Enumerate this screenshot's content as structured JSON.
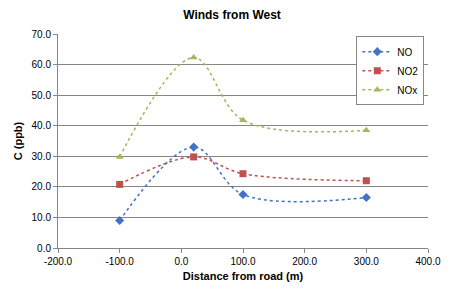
{
  "chart_data": {
    "type": "line",
    "title": "Winds from West",
    "x_label": "Distance from road (m)",
    "y_label": "C (ppb)",
    "x": [
      -100,
      20,
      100,
      300
    ],
    "series": [
      {
        "name": "NO",
        "color": "#4472c4",
        "marker": "diamond",
        "line_style": "dotted",
        "values": [
          9.0,
          33.0,
          17.5,
          16.5
        ]
      },
      {
        "name": "NO2",
        "color": "#c0504d",
        "marker": "square",
        "line_style": "dotted",
        "values": [
          20.8,
          29.8,
          24.3,
          22.0
        ]
      },
      {
        "name": "NOx",
        "color": "#9bbb59",
        "marker": "triangle-up",
        "line_style": "dotted",
        "values": [
          29.8,
          62.3,
          41.8,
          38.5
        ]
      }
    ],
    "xlim": [
      -200,
      400
    ],
    "xticks": [
      {
        "value": -200,
        "label": "-200.0"
      },
      {
        "value": -100,
        "label": "-100.0"
      },
      {
        "value": 0,
        "label": "0.0"
      },
      {
        "value": 100,
        "label": "100.0"
      },
      {
        "value": 200,
        "label": "200.0"
      },
      {
        "value": 300,
        "label": "300.0"
      },
      {
        "value": 400,
        "label": "400.0"
      }
    ],
    "ylim": [
      0,
      70
    ],
    "yticks": [
      {
        "value": 0,
        "label": "0.0"
      },
      {
        "value": 10,
        "label": "10.0"
      },
      {
        "value": 20,
        "label": "20.0"
      },
      {
        "value": 30,
        "label": "30.0"
      },
      {
        "value": 40,
        "label": "40.0"
      },
      {
        "value": 50,
        "label": "50.0"
      },
      {
        "value": 60,
        "label": "60.0"
      },
      {
        "value": 70,
        "label": "70.0"
      }
    ],
    "grid": "y",
    "legend": "upper right"
  }
}
